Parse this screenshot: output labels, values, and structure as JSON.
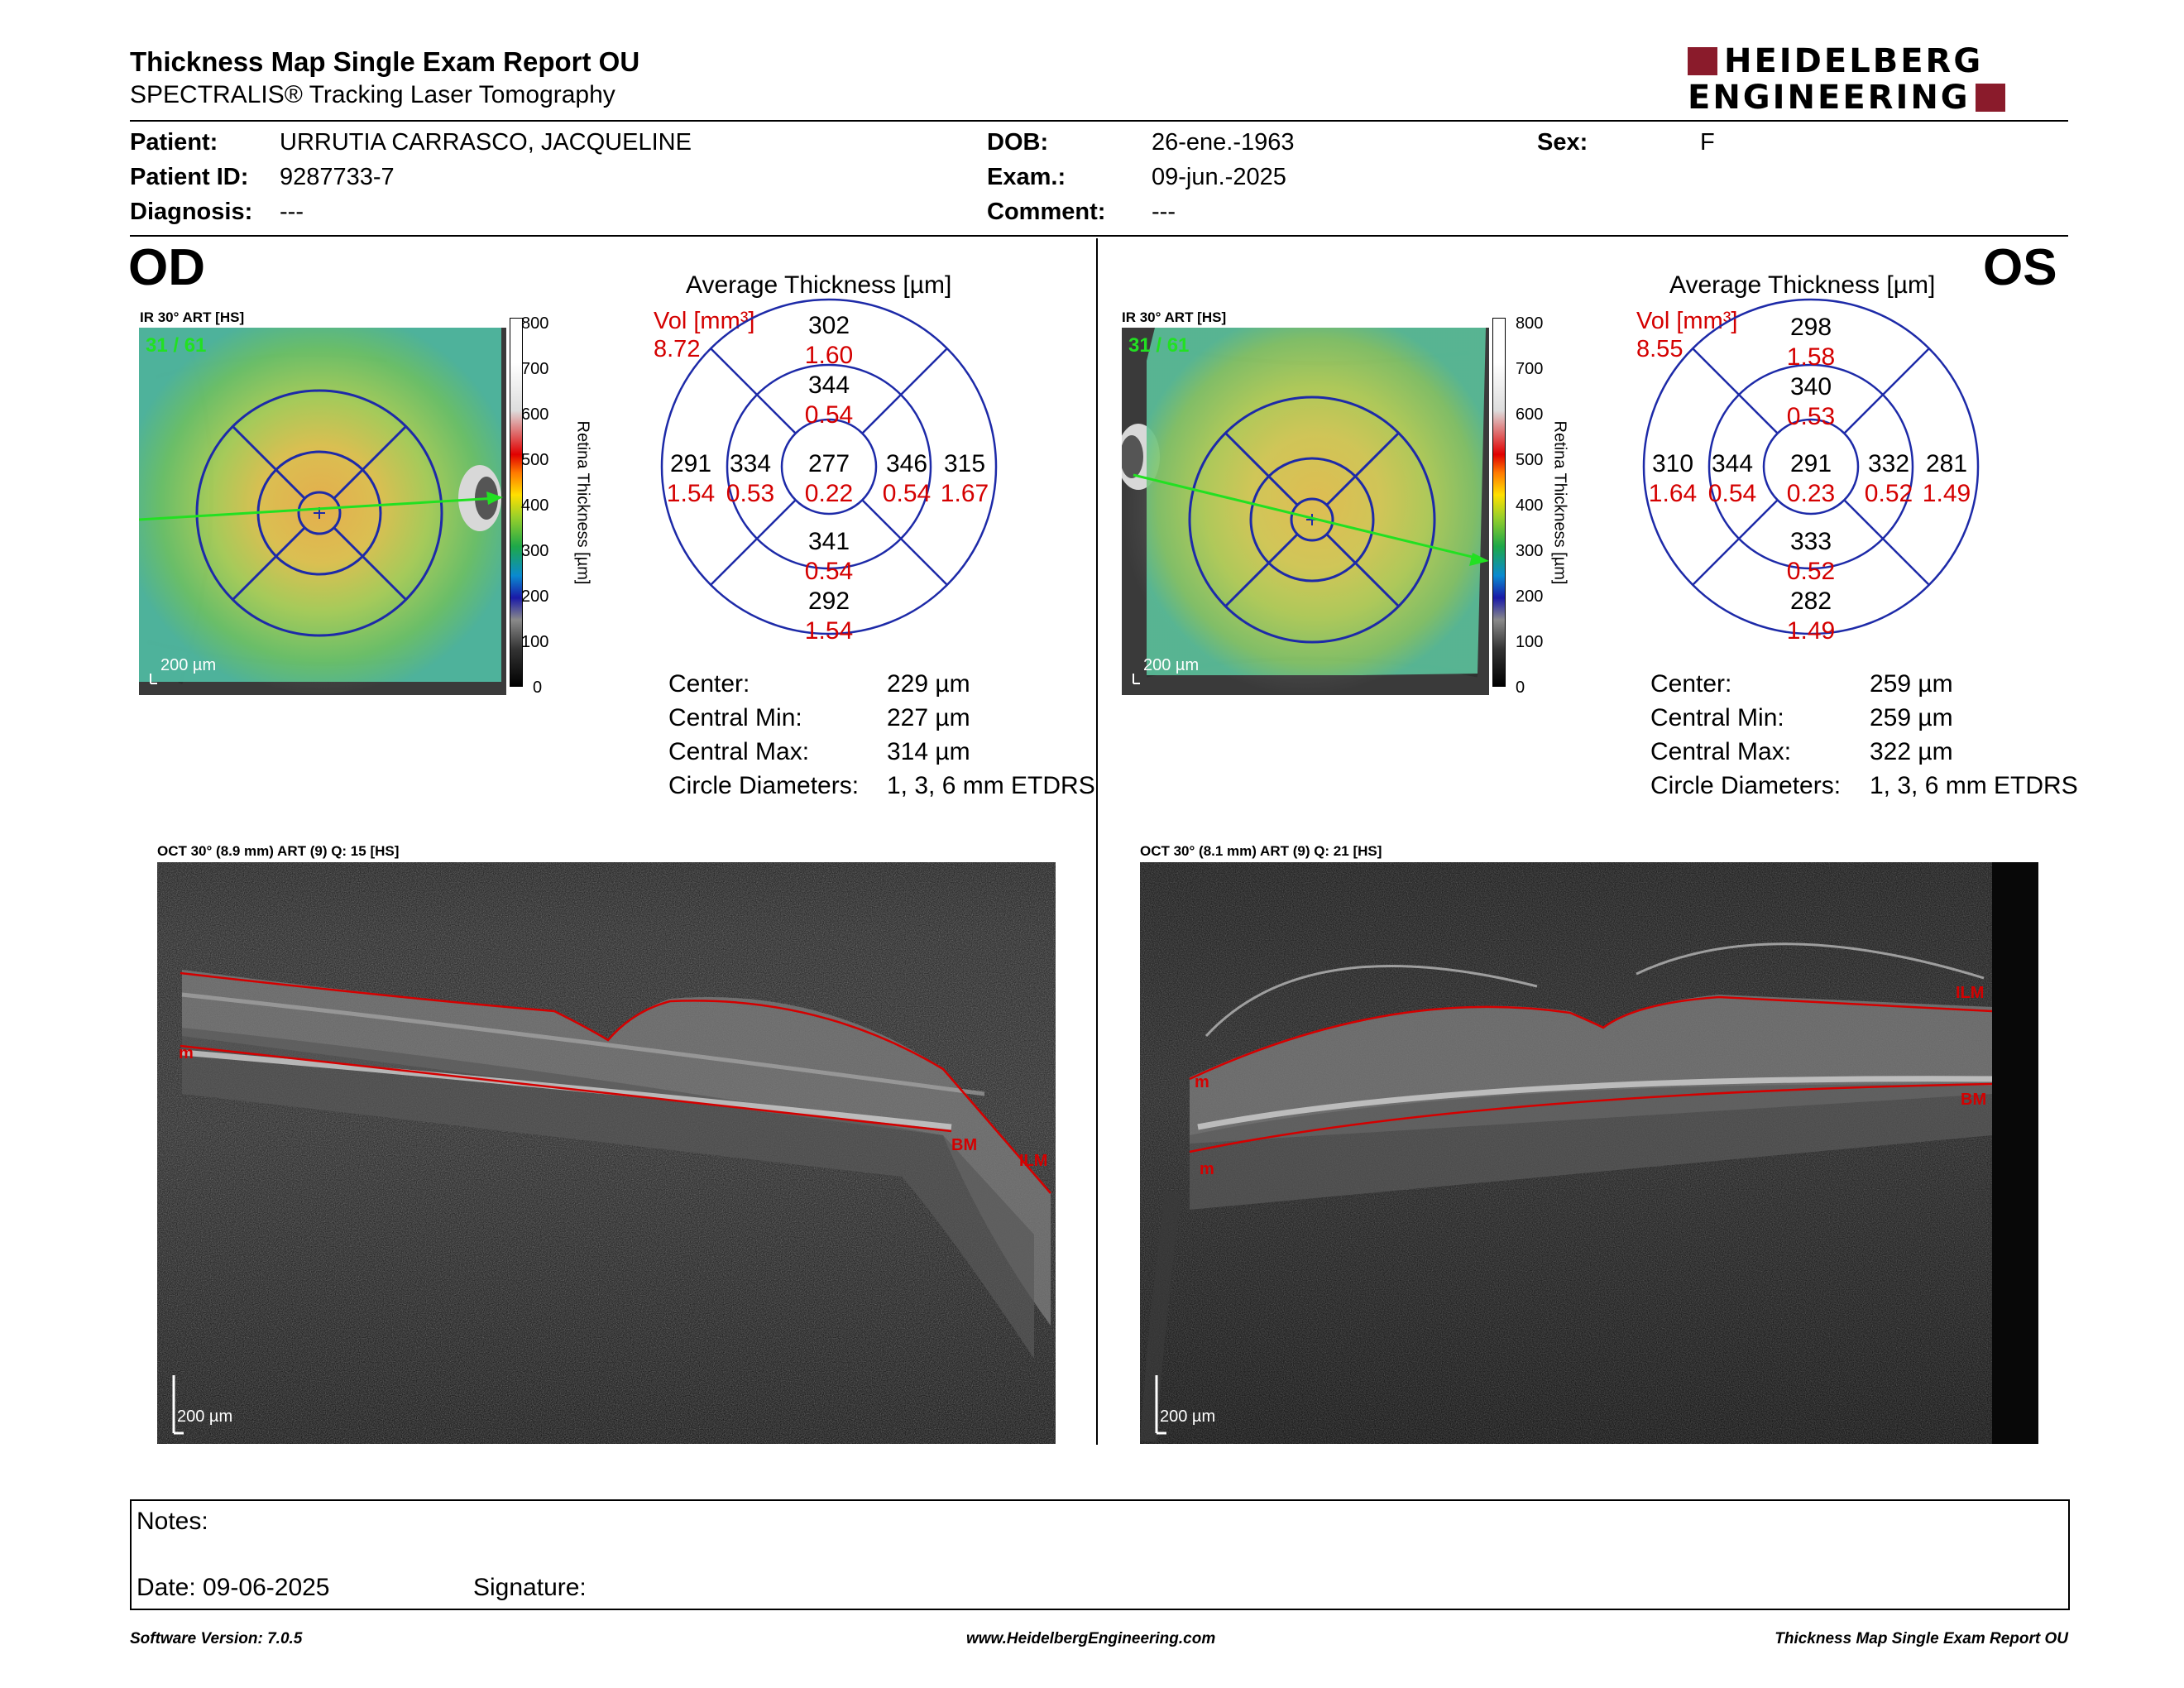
{
  "header": {
    "title": "Thickness Map Single Exam Report OU",
    "subtitle": "SPECTRALIS® Tracking Laser Tomography",
    "logo_line1": "HEIDELBERG",
    "logo_line2": "ENGINEERING",
    "logo_color": "#8a1b2b"
  },
  "patient": {
    "patient_label": "Patient:",
    "patient": "URRUTIA CARRASCO, JACQUELINE",
    "id_label": "Patient ID:",
    "id": "9287733-7",
    "diagnosis_label": "Diagnosis:",
    "diagnosis": "---",
    "dob_label": "DOB:",
    "dob": "26-ene.-1963",
    "exam_label": "Exam.:",
    "exam": "09-jun.-2025",
    "comment_label": "Comment:",
    "comment": "---",
    "sex_label": "Sex:",
    "sex": "F"
  },
  "od": {
    "eye": "OD",
    "ir_label": "IR 30° ART [HS]",
    "frame": "31 / 61",
    "scale": "200 µm",
    "colorbar_ticks": [
      "800",
      "700",
      "600",
      "500",
      "400",
      "300",
      "200",
      "100",
      "0"
    ],
    "colorbar_label": "Retina Thickness [µm]",
    "avg_title": "Average Thickness [µm]",
    "vol_label": "Vol [mm³]",
    "vol_total": "8.72",
    "sectors": {
      "center": [
        "277",
        "0.22"
      ],
      "inner_sup": [
        "344",
        "0.54"
      ],
      "inner_inf": [
        "341",
        "0.54"
      ],
      "inner_temp": [
        "334",
        "0.53"
      ],
      "inner_nas": [
        "346",
        "0.54"
      ],
      "outer_sup": [
        "302",
        "1.60"
      ],
      "outer_inf": [
        "292",
        "1.54"
      ],
      "outer_temp": [
        "291",
        "1.54"
      ],
      "outer_nas": [
        "315",
        "1.67"
      ]
    },
    "stats": [
      [
        "Center:",
        "229 µm"
      ],
      [
        "Central Min:",
        "227 µm"
      ],
      [
        "Central Max:",
        "314 µm"
      ],
      [
        "Circle Diameters:",
        "1, 3, 6 mm ETDRS"
      ]
    ],
    "oct_label": "OCT 30° (8.9 mm) ART (9) Q: 15 [HS]",
    "oct_scale": "200 µm",
    "oct_tags": [
      "m",
      "BM",
      "ILM"
    ]
  },
  "os": {
    "eye": "OS",
    "ir_label": "IR 30° ART [HS]",
    "frame": "31 / 61",
    "scale": "200 µm",
    "colorbar_ticks": [
      "800",
      "700",
      "600",
      "500",
      "400",
      "300",
      "200",
      "100",
      "0"
    ],
    "colorbar_label": "Retina Thickness [µm]",
    "avg_title": "Average Thickness [µm]",
    "vol_label": "Vol [mm³]",
    "vol_total": "8.55",
    "sectors": {
      "center": [
        "291",
        "0.23"
      ],
      "inner_sup": [
        "340",
        "0.53"
      ],
      "inner_inf": [
        "333",
        "0.52"
      ],
      "inner_temp": [
        "344",
        "0.54"
      ],
      "inner_nas": [
        "332",
        "0.52"
      ],
      "outer_sup": [
        "298",
        "1.58"
      ],
      "outer_inf": [
        "282",
        "1.49"
      ],
      "outer_temp": [
        "310",
        "1.64"
      ],
      "outer_nas": [
        "281",
        "1.49"
      ]
    },
    "stats": [
      [
        "Center:",
        "259 µm"
      ],
      [
        "Central Min:",
        "259 µm"
      ],
      [
        "Central Max:",
        "322 µm"
      ],
      [
        "Circle Diameters:",
        "1, 3, 6 mm ETDRS"
      ]
    ],
    "oct_label": "OCT 30° (8.1 mm) ART (9) Q: 21 [HS]",
    "oct_scale": "200 µm",
    "oct_tags": [
      "ILM",
      "m",
      "BM",
      "m"
    ]
  },
  "notes": {
    "notes_label": "Notes:",
    "date_label": "Date: 09-06-2025",
    "signature_label": "Signature:"
  },
  "footer": {
    "software": "Software Version: 7.0.5",
    "website": "www.HeidelbergEngineering.com",
    "report": "Thickness Map Single Exam Report OU"
  }
}
